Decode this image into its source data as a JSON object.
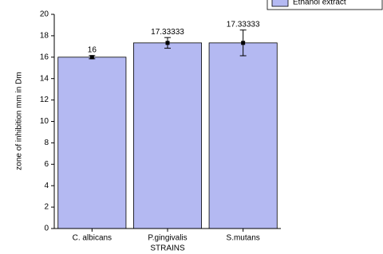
{
  "chart_data": {
    "type": "bar",
    "x_label": "STRAINS",
    "y_label": "zone of inhibition mm in Dm",
    "categories": [
      "C. albicans",
      "P.gingivalis",
      "S.mutans"
    ],
    "series": [
      {
        "name": "Ethanol extract",
        "color": "#b4b9f2",
        "values": [
          16,
          17.33333,
          17.33333
        ],
        "errors": [
          0.15,
          0.5,
          1.2
        ]
      }
    ],
    "ylim": [
      0,
      20
    ],
    "yticks": [
      0,
      2,
      4,
      6,
      8,
      10,
      12,
      14,
      16,
      18,
      20
    ],
    "legend": "top-right"
  }
}
